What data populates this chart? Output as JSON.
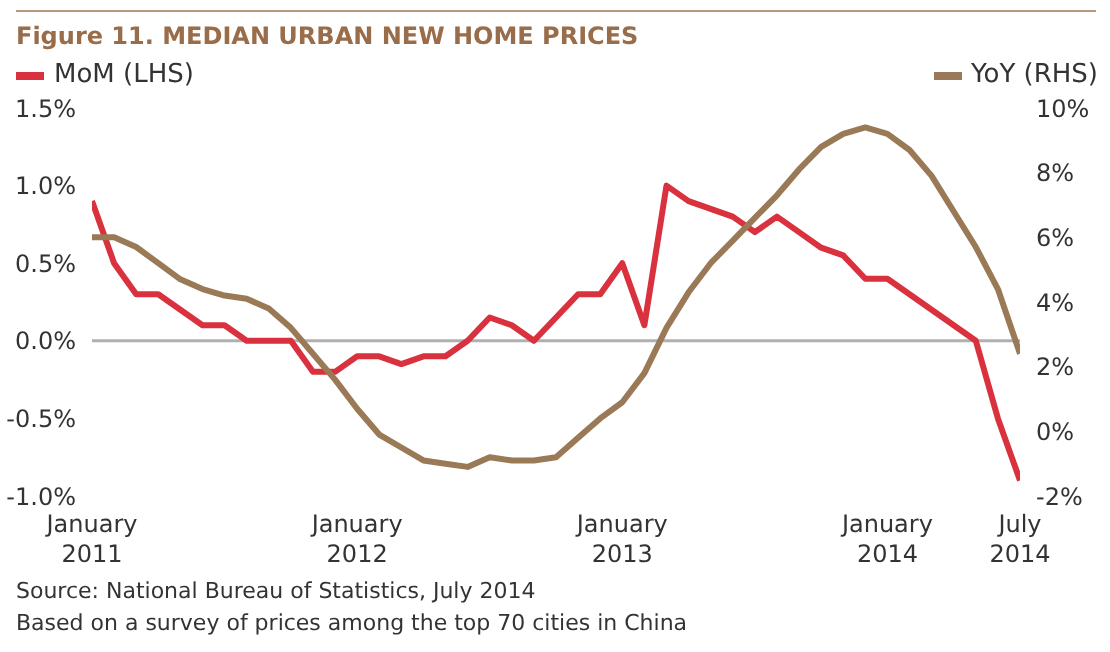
{
  "chart_data": {
    "type": "line",
    "title": "Figure 11. MEDIAN URBAN NEW HOME PRICES",
    "x": [
      "2011-01",
      "2011-02",
      "2011-03",
      "2011-04",
      "2011-05",
      "2011-06",
      "2011-07",
      "2011-08",
      "2011-09",
      "2011-10",
      "2011-11",
      "2011-12",
      "2012-01",
      "2012-02",
      "2012-03",
      "2012-04",
      "2012-05",
      "2012-06",
      "2012-07",
      "2012-08",
      "2012-09",
      "2012-10",
      "2012-11",
      "2012-12",
      "2013-01",
      "2013-02",
      "2013-03",
      "2013-04",
      "2013-05",
      "2013-06",
      "2013-07",
      "2013-08",
      "2013-09",
      "2013-10",
      "2013-11",
      "2013-12",
      "2014-01",
      "2014-02",
      "2014-03",
      "2014-04",
      "2014-05",
      "2014-06",
      "2014-07"
    ],
    "series": [
      {
        "name": "MoM (LHS)",
        "color": "#d9313d",
        "axis": "y",
        "values": [
          0.9,
          0.5,
          0.3,
          0.3,
          0.2,
          0.1,
          0.1,
          0.0,
          0.0,
          0.0,
          -0.2,
          -0.2,
          -0.1,
          -0.1,
          -0.15,
          -0.1,
          -0.1,
          0.0,
          0.15,
          0.1,
          0.0,
          0.15,
          0.3,
          0.3,
          0.5,
          0.1,
          1.0,
          0.9,
          0.85,
          0.8,
          0.7,
          0.8,
          0.7,
          0.6,
          0.55,
          0.4,
          0.4,
          0.3,
          0.2,
          0.1,
          0.0,
          -0.5,
          -0.9
        ]
      },
      {
        "name": "YoY (RHS)",
        "color": "#9a7a56",
        "axis": "y2",
        "values": [
          6.0,
          6.0,
          5.7,
          5.2,
          4.7,
          4.4,
          4.2,
          4.1,
          3.8,
          3.2,
          2.4,
          1.6,
          0.7,
          -0.1,
          -0.5,
          -0.9,
          -1.0,
          -1.1,
          -0.8,
          -0.9,
          -0.9,
          -0.8,
          -0.2,
          0.4,
          0.9,
          1.8,
          3.2,
          4.3,
          5.2,
          5.9,
          6.6,
          7.3,
          8.1,
          8.8,
          9.2,
          9.4,
          9.2,
          8.7,
          7.9,
          6.8,
          5.7,
          4.4,
          2.4
        ]
      }
    ],
    "xlim": [
      "2011-01",
      "2014-07"
    ],
    "xticks": [
      {
        "value": "2011-01",
        "label": "January 2011"
      },
      {
        "value": "2012-01",
        "label": "January 2012"
      },
      {
        "value": "2013-01",
        "label": "January 2013"
      },
      {
        "value": "2014-01",
        "label": "January 2014"
      },
      {
        "value": "2014-07",
        "label": "July 2014"
      }
    ],
    "ylim": [
      -1.0,
      1.5
    ],
    "yticks": [
      {
        "value": -1.0,
        "label": "-1.0%"
      },
      {
        "value": -0.5,
        "label": "-0.5%"
      },
      {
        "value": 0,
        "label": "0.0%"
      },
      {
        "value": 0.5,
        "label": "0.5%"
      },
      {
        "value": 1.0,
        "label": "1.0%"
      },
      {
        "value": 1.5,
        "label": "1.5%"
      }
    ],
    "y2lim": [
      -2,
      10
    ],
    "y2ticks": [
      {
        "value": -2,
        "label": "-2%"
      },
      {
        "value": 0,
        "label": "0%"
      },
      {
        "value": 2,
        "label": "2%"
      },
      {
        "value": 4,
        "label": "4%"
      },
      {
        "value": 6,
        "label": "6%"
      },
      {
        "value": 8,
        "label": "8%"
      },
      {
        "value": 10,
        "label": "10%"
      }
    ],
    "ref_lines": [
      {
        "axis": "y",
        "value": 0,
        "color": "#b0b0b0"
      }
    ],
    "grid": false,
    "legend": "top",
    "marker": "none",
    "line_style": "solid",
    "annotations": [
      "Source: National Bureau of Statistics, July 2014",
      "Based on a survey of prices among the top 70 cities in China"
    ]
  }
}
